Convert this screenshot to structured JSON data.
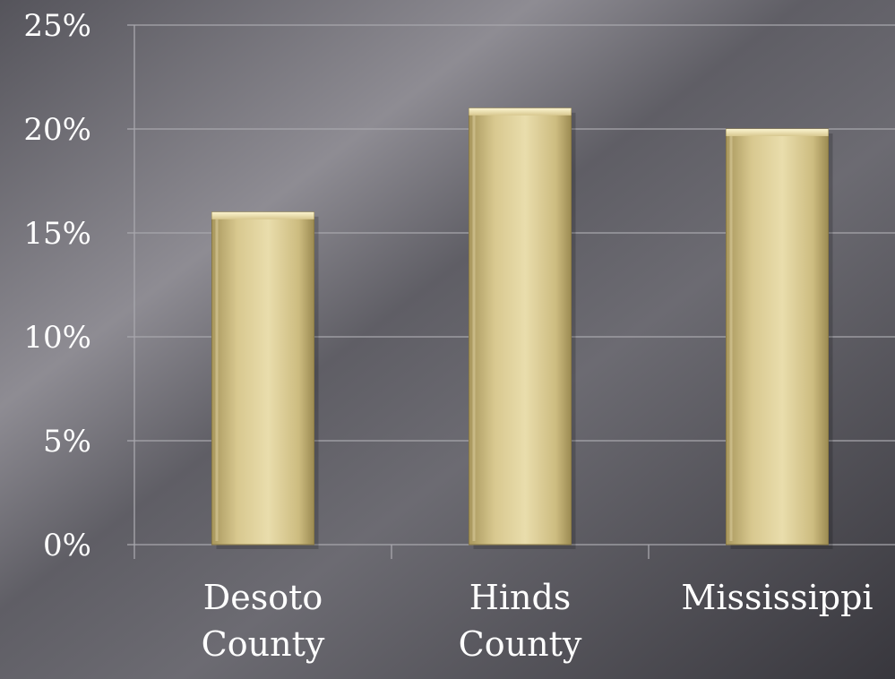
{
  "chart_data": {
    "type": "bar",
    "categories": [
      [
        "Desoto",
        "County"
      ],
      [
        "Hinds",
        "County"
      ],
      [
        "Mississippi"
      ]
    ],
    "values": [
      0.16,
      0.21,
      0.2
    ],
    "ylim": [
      0,
      0.25
    ],
    "yticks": [
      {
        "value": 0,
        "label": "0%"
      },
      {
        "value": 0.05,
        "label": "5%"
      },
      {
        "value": 0.1,
        "label": "10%"
      },
      {
        "value": 0.15,
        "label": "15%"
      },
      {
        "value": 0.2,
        "label": "20%"
      },
      {
        "value": 0.25,
        "label": "25%"
      }
    ],
    "title": "",
    "xlabel": "",
    "ylabel": "",
    "grid": true,
    "legend": "none",
    "colors": {
      "bar_light": "#e6d8a4",
      "bar_dark": "#a8975d",
      "bar_edge": "#f4ebbf",
      "grid": "#a8a7ad",
      "text": "#ffffff"
    }
  }
}
